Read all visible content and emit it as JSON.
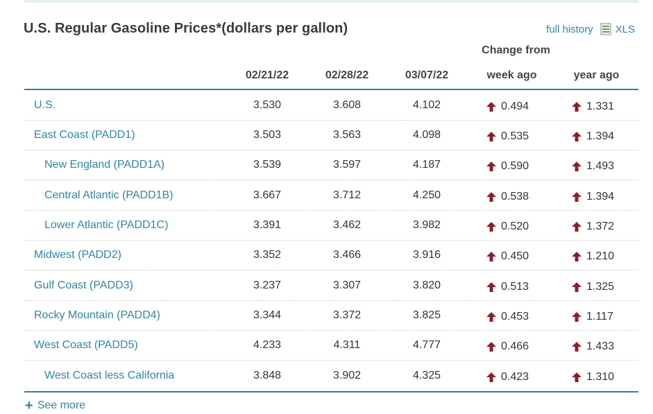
{
  "title": "U.S. Regular Gasoline Prices*(dollars per gallon)",
  "links": {
    "full_history": "full history",
    "xls": "XLS"
  },
  "columns": {
    "dates": [
      "02/21/22",
      "02/28/22",
      "03/07/22"
    ],
    "change_from": "Change from",
    "week_ago": "week ago",
    "year_ago": "year ago"
  },
  "rows": [
    {
      "name": "U.S.",
      "v1": "3.530",
      "v2": "3.608",
      "v3": "4.102",
      "week": "0.494",
      "year": "1.331"
    },
    {
      "name": "East Coast (PADD1)",
      "v1": "3.503",
      "v2": "3.563",
      "v3": "4.098",
      "week": "0.535",
      "year": "1.394"
    },
    {
      "name": "New England (PADD1A)",
      "v1": "3.539",
      "v2": "3.597",
      "v3": "4.187",
      "week": "0.590",
      "year": "1.493"
    },
    {
      "name": "Central Atlantic (PADD1B)",
      "v1": "3.667",
      "v2": "3.712",
      "v3": "4.250",
      "week": "0.538",
      "year": "1.394"
    },
    {
      "name": "Lower Atlantic (PADD1C)",
      "v1": "3.391",
      "v2": "3.462",
      "v3": "3.982",
      "week": "0.520",
      "year": "1.372"
    },
    {
      "name": "Midwest (PADD2)",
      "v1": "3.352",
      "v2": "3.466",
      "v3": "3.916",
      "week": "0.450",
      "year": "1.210"
    },
    {
      "name": "Gulf Coast (PADD3)",
      "v1": "3.237",
      "v2": "3.307",
      "v3": "3.820",
      "week": "0.513",
      "year": "1.325"
    },
    {
      "name": "Rocky Mountain (PADD4)",
      "v1": "3.344",
      "v2": "3.372",
      "v3": "3.825",
      "week": "0.453",
      "year": "1.117"
    },
    {
      "name": "West Coast (PADD5)",
      "v1": "4.233",
      "v2": "4.311",
      "v3": "4.777",
      "week": "0.466",
      "year": "1.433"
    },
    {
      "name": "West Coast less California",
      "v1": "3.848",
      "v2": "3.902",
      "v3": "4.325",
      "week": "0.423",
      "year": "1.310"
    }
  ],
  "see_more": "See more",
  "colors": {
    "link": "#2f86a6",
    "rule": "#2d7fa6",
    "arrow_up": "#8b1e2d"
  },
  "icons": {
    "xls": "spreadsheet-icon",
    "change": "arrow-up-icon",
    "see_more": "plus-icon"
  }
}
